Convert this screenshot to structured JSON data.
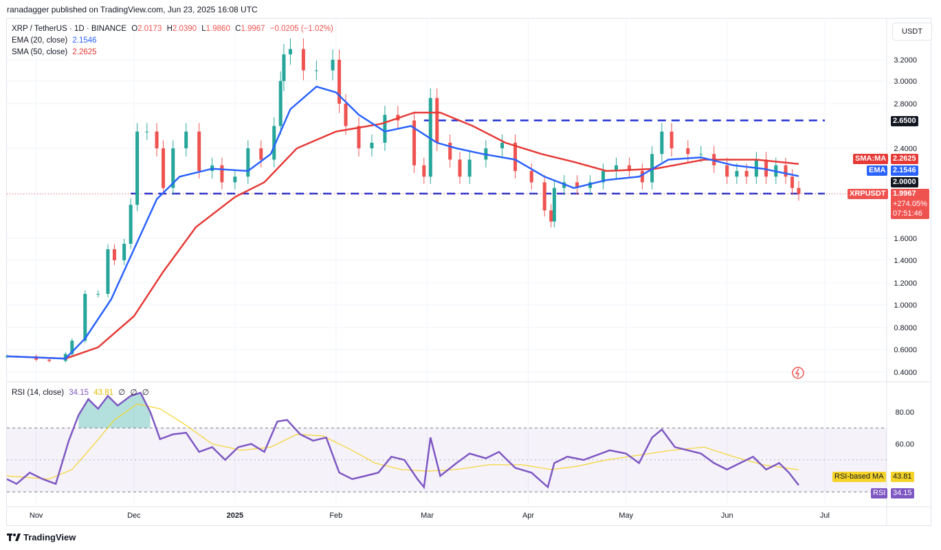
{
  "header": {
    "published_line": "ranadagger published on TradingView.com, Jun 23, 2025 16:08 UTC"
  },
  "legend": {
    "symbol": "XRP / TetherUS · 1D · BINANCE",
    "ohlc": {
      "o_label": "O",
      "o": "2.0173",
      "h_label": "H",
      "h": "2.0390",
      "l_label": "L",
      "l": "1.9860",
      "c_label": "C",
      "c": "1.9967",
      "chg": "−0.0205 (−1.02%)"
    },
    "ema_label": "EMA (20, close)",
    "ema_value": "2.1546",
    "sma_label": "SMA (50, close)",
    "sma_value": "2.2625"
  },
  "currency_button": "USDT",
  "price_tags": {
    "resistance": "2.6500",
    "sma_name": "SMA:MA",
    "sma_value": "2.2625",
    "ema_name": "EMA",
    "ema_value": "2.1546",
    "support": "2.0000",
    "symbol_name": "XRPUSDT",
    "last": "1.9967",
    "pct": "+274.05%",
    "countdown": "07:51:46"
  },
  "rsi_legend": {
    "label": "RSI (14, close)",
    "rsi": "34.15",
    "ma": "43.81",
    "z1": "∅",
    "z2": "∅",
    "z3": "∅"
  },
  "rsi_tags": {
    "ma_name": "RSI-based MA",
    "ma_value": "43.81",
    "rsi_name": "RSI",
    "rsi_value": "34.15"
  },
  "footer": {
    "brand": "TradingView"
  },
  "colors": {
    "up": "#26a69a",
    "down": "#ef5350",
    "ema": "#2962ff",
    "sma": "#e53935",
    "rsi": "#7e57c2",
    "rsi_ma": "#f5d327",
    "level": "#1e2fd3",
    "grid": "#f0f3fa"
  },
  "chart_data": [
    {
      "type": "candlestick",
      "title": "XRP / TetherUS · 1D · BINANCE",
      "y_ticks": [
        0.4,
        0.6,
        0.8,
        1.0,
        1.2,
        1.4,
        1.6,
        2.0,
        2.4,
        2.8,
        3.0,
        3.2
      ],
      "ylim": [
        0.35,
        3.45
      ],
      "x_ticks": [
        "Nov",
        "Dec",
        "2025",
        "Feb",
        "Mar",
        "Apr",
        "May",
        "Jun",
        "Jul"
      ],
      "horizontal_levels": [
        2.65,
        2.0
      ],
      "close_series_sampled": [
        [
          "2024-10-23",
          0.54
        ],
        [
          "2024-11-01",
          0.51
        ],
        [
          "2024-11-05",
          0.5
        ],
        [
          "2024-11-10",
          0.56
        ],
        [
          "2024-11-12",
          0.68
        ],
        [
          "2024-11-16",
          1.1
        ],
        [
          "2024-11-20",
          1.1
        ],
        [
          "2024-11-23",
          1.5
        ],
        [
          "2024-11-25",
          1.4
        ],
        [
          "2024-11-28",
          1.55
        ],
        [
          "2024-11-30",
          1.9
        ],
        [
          "2024-12-02",
          2.55
        ],
        [
          "2024-12-05",
          2.55
        ],
        [
          "2024-12-08",
          2.4
        ],
        [
          "2024-12-10",
          2.05
        ],
        [
          "2024-12-13",
          2.4
        ],
        [
          "2024-12-17",
          2.55
        ],
        [
          "2024-12-21",
          2.2
        ],
        [
          "2024-12-25",
          2.25
        ],
        [
          "2024-12-28",
          2.1
        ],
        [
          "2025-01-01",
          2.15
        ],
        [
          "2025-01-05",
          2.4
        ],
        [
          "2025-01-09",
          2.3
        ],
        [
          "2025-01-13",
          2.6
        ],
        [
          "2025-01-15",
          3.0
        ],
        [
          "2025-01-16",
          3.25
        ],
        [
          "2025-01-18",
          3.3
        ],
        [
          "2025-01-22",
          3.1
        ],
        [
          "2025-01-26",
          3.1
        ],
        [
          "2025-01-31",
          3.2
        ],
        [
          "2025-02-02",
          2.8
        ],
        [
          "2025-02-04",
          2.6
        ],
        [
          "2025-02-08",
          2.4
        ],
        [
          "2025-02-12",
          2.45
        ],
        [
          "2025-02-16",
          2.7
        ],
        [
          "2025-02-20",
          2.65
        ],
        [
          "2025-02-25",
          2.25
        ],
        [
          "2025-02-28",
          2.15
        ],
        [
          "2025-03-02",
          2.85
        ],
        [
          "2025-03-04",
          2.45
        ],
        [
          "2025-03-08",
          2.3
        ],
        [
          "2025-03-11",
          2.15
        ],
        [
          "2025-03-14",
          2.3
        ],
        [
          "2025-03-19",
          2.4
        ],
        [
          "2025-03-24",
          2.45
        ],
        [
          "2025-03-28",
          2.2
        ],
        [
          "2025-04-02",
          2.1
        ],
        [
          "2025-04-06",
          1.85
        ],
        [
          "2025-04-08",
          1.75
        ],
        [
          "2025-04-09",
          2.05
        ],
        [
          "2025-04-12",
          2.1
        ],
        [
          "2025-04-16",
          2.05
        ],
        [
          "2025-04-20",
          2.1
        ],
        [
          "2025-04-24",
          2.2
        ],
        [
          "2025-04-28",
          2.25
        ],
        [
          "2025-05-02",
          2.2
        ],
        [
          "2025-05-06",
          2.1
        ],
        [
          "2025-05-09",
          2.35
        ],
        [
          "2025-05-12",
          2.55
        ],
        [
          "2025-05-15",
          2.4
        ],
        [
          "2025-05-20",
          2.35
        ],
        [
          "2025-05-24",
          2.35
        ],
        [
          "2025-05-28",
          2.25
        ],
        [
          "2025-06-01",
          2.15
        ],
        [
          "2025-06-04",
          2.2
        ],
        [
          "2025-06-07",
          2.15
        ],
        [
          "2025-06-10",
          2.3
        ],
        [
          "2025-06-13",
          2.15
        ],
        [
          "2025-06-16",
          2.25
        ],
        [
          "2025-06-19",
          2.15
        ],
        [
          "2025-06-21",
          2.05
        ],
        [
          "2025-06-23",
          1.9967
        ]
      ],
      "ema20_sampled": [
        [
          "2024-10-23",
          0.54
        ],
        [
          "2024-11-10",
          0.52
        ],
        [
          "2024-11-16",
          0.7
        ],
        [
          "2024-11-24",
          1.05
        ],
        [
          "2024-12-01",
          1.5
        ],
        [
          "2024-12-08",
          1.95
        ],
        [
          "2024-12-15",
          2.15
        ],
        [
          "2024-12-25",
          2.22
        ],
        [
          "2025-01-05",
          2.2
        ],
        [
          "2025-01-12",
          2.35
        ],
        [
          "2025-01-18",
          2.75
        ],
        [
          "2025-01-26",
          2.95
        ],
        [
          "2025-02-01",
          2.9
        ],
        [
          "2025-02-08",
          2.7
        ],
        [
          "2025-02-16",
          2.55
        ],
        [
          "2025-02-24",
          2.6
        ],
        [
          "2025-03-04",
          2.45
        ],
        [
          "2025-03-10",
          2.4
        ],
        [
          "2025-03-18",
          2.35
        ],
        [
          "2025-03-28",
          2.3
        ],
        [
          "2025-04-06",
          2.15
        ],
        [
          "2025-04-15",
          2.05
        ],
        [
          "2025-04-25",
          2.12
        ],
        [
          "2025-05-05",
          2.15
        ],
        [
          "2025-05-14",
          2.3
        ],
        [
          "2025-05-24",
          2.32
        ],
        [
          "2025-06-03",
          2.25
        ],
        [
          "2025-06-12",
          2.22
        ],
        [
          "2025-06-23",
          2.1546
        ]
      ],
      "sma50_sampled": [
        [
          "2024-10-23",
          0.54
        ],
        [
          "2024-11-10",
          0.52
        ],
        [
          "2024-11-20",
          0.62
        ],
        [
          "2024-12-01",
          0.9
        ],
        [
          "2024-12-10",
          1.3
        ],
        [
          "2024-12-20",
          1.7
        ],
        [
          "2025-01-01",
          1.97
        ],
        [
          "2025-01-10",
          2.1
        ],
        [
          "2025-01-20",
          2.4
        ],
        [
          "2025-02-01",
          2.55
        ],
        [
          "2025-02-15",
          2.62
        ],
        [
          "2025-02-25",
          2.72
        ],
        [
          "2025-03-05",
          2.72
        ],
        [
          "2025-03-15",
          2.6
        ],
        [
          "2025-03-25",
          2.45
        ],
        [
          "2025-04-05",
          2.35
        ],
        [
          "2025-04-15",
          2.28
        ],
        [
          "2025-04-25",
          2.2
        ],
        [
          "2025-05-10",
          2.22
        ],
        [
          "2025-05-25",
          2.3
        ],
        [
          "2025-06-10",
          2.3
        ],
        [
          "2025-06-23",
          2.2625
        ]
      ]
    },
    {
      "type": "line",
      "title": "RSI (14, close)",
      "y_ticks": [
        40.0,
        60.0,
        80.0
      ],
      "ylim": [
        22,
        98
      ],
      "band": [
        30,
        70
      ],
      "midline": 50,
      "rsi_sampled": [
        [
          "2024-10-23",
          38
        ],
        [
          "2024-10-26",
          35
        ],
        [
          "2024-10-30",
          42
        ],
        [
          "2024-11-03",
          38
        ],
        [
          "2024-11-07",
          35
        ],
        [
          "2024-11-11",
          62
        ],
        [
          "2024-11-14",
          78
        ],
        [
          "2024-11-17",
          88
        ],
        [
          "2024-11-20",
          82
        ],
        [
          "2024-11-23",
          90
        ],
        [
          "2024-11-26",
          84
        ],
        [
          "2024-11-30",
          90
        ],
        [
          "2024-12-03",
          92
        ],
        [
          "2024-12-06",
          80
        ],
        [
          "2024-12-09",
          63
        ],
        [
          "2024-12-13",
          66
        ],
        [
          "2024-12-17",
          67
        ],
        [
          "2024-12-21",
          55
        ],
        [
          "2024-12-25",
          58
        ],
        [
          "2024-12-29",
          50
        ],
        [
          "2025-01-02",
          58
        ],
        [
          "2025-01-06",
          60
        ],
        [
          "2025-01-10",
          55
        ],
        [
          "2025-01-14",
          74
        ],
        [
          "2025-01-17",
          75
        ],
        [
          "2025-01-21",
          66
        ],
        [
          "2025-01-25",
          62
        ],
        [
          "2025-01-29",
          64
        ],
        [
          "2025-02-02",
          42
        ],
        [
          "2025-02-06",
          38
        ],
        [
          "2025-02-10",
          40
        ],
        [
          "2025-02-14",
          42
        ],
        [
          "2025-02-18",
          52
        ],
        [
          "2025-02-22",
          50
        ],
        [
          "2025-02-26",
          38
        ],
        [
          "2025-02-28",
          33
        ],
        [
          "2025-03-02",
          64
        ],
        [
          "2025-03-05",
          40
        ],
        [
          "2025-03-10",
          48
        ],
        [
          "2025-03-14",
          54
        ],
        [
          "2025-03-19",
          51
        ],
        [
          "2025-03-23",
          55
        ],
        [
          "2025-03-28",
          45
        ],
        [
          "2025-04-02",
          42
        ],
        [
          "2025-04-07",
          33
        ],
        [
          "2025-04-09",
          48
        ],
        [
          "2025-04-13",
          52
        ],
        [
          "2025-04-18",
          50
        ],
        [
          "2025-04-22",
          53
        ],
        [
          "2025-04-26",
          56
        ],
        [
          "2025-05-01",
          54
        ],
        [
          "2025-05-05",
          48
        ],
        [
          "2025-05-09",
          64
        ],
        [
          "2025-05-12",
          69
        ],
        [
          "2025-05-16",
          58
        ],
        [
          "2025-05-20",
          56
        ],
        [
          "2025-05-24",
          54
        ],
        [
          "2025-05-28",
          48
        ],
        [
          "2025-06-01",
          44
        ],
        [
          "2025-06-05",
          48
        ],
        [
          "2025-06-09",
          52
        ],
        [
          "2025-06-13",
          44
        ],
        [
          "2025-06-17",
          48
        ],
        [
          "2025-06-20",
          42
        ],
        [
          "2025-06-23",
          34.15
        ]
      ],
      "rsi_ma_sampled": [
        [
          "2024-10-23",
          40
        ],
        [
          "2024-11-05",
          38
        ],
        [
          "2024-11-12",
          44
        ],
        [
          "2024-11-18",
          58
        ],
        [
          "2024-11-25",
          75
        ],
        [
          "2024-12-02",
          85
        ],
        [
          "2024-12-09",
          82
        ],
        [
          "2024-12-16",
          73
        ],
        [
          "2024-12-25",
          60
        ],
        [
          "2025-01-03",
          56
        ],
        [
          "2025-01-12",
          58
        ],
        [
          "2025-01-20",
          66
        ],
        [
          "2025-01-28",
          65
        ],
        [
          "2025-02-05",
          57
        ],
        [
          "2025-02-13",
          48
        ],
        [
          "2025-02-21",
          44
        ],
        [
          "2025-03-01",
          43
        ],
        [
          "2025-03-10",
          44
        ],
        [
          "2025-03-20",
          47
        ],
        [
          "2025-03-30",
          47
        ],
        [
          "2025-04-08",
          44
        ],
        [
          "2025-04-16",
          46
        ],
        [
          "2025-04-25",
          50
        ],
        [
          "2025-05-05",
          53
        ],
        [
          "2025-05-15",
          56
        ],
        [
          "2025-05-25",
          58
        ],
        [
          "2025-06-03",
          52
        ],
        [
          "2025-06-12",
          47
        ],
        [
          "2025-06-23",
          43.81
        ]
      ]
    }
  ]
}
